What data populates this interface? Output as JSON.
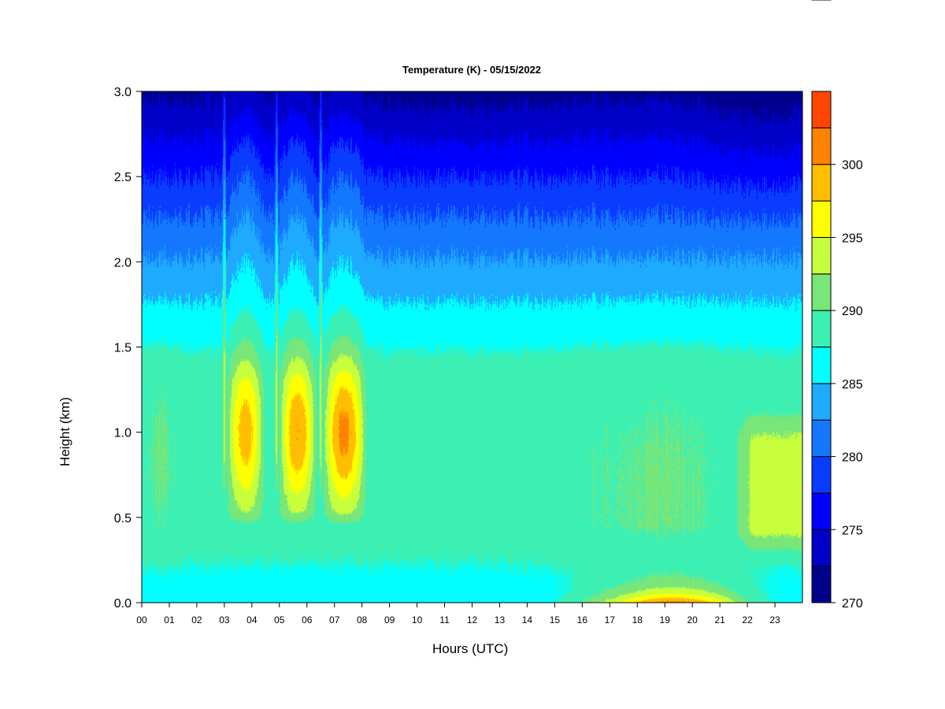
{
  "chart_data": {
    "type": "heatmap",
    "title": "Temperature (K) - 05/15/2022",
    "xlabel": "Hours (UTC)",
    "ylabel": "Height (km)",
    "x_tick_labels": [
      "00",
      "01",
      "02",
      "03",
      "04",
      "05",
      "06",
      "07",
      "08",
      "09",
      "10",
      "11",
      "12",
      "13",
      "14",
      "15",
      "16",
      "17",
      "18",
      "19",
      "20",
      "21",
      "22",
      "23"
    ],
    "y_tick_labels": [
      "0.0",
      "0.5",
      "1.0",
      "1.5",
      "2.0",
      "2.5",
      "3.0"
    ],
    "xlim": [
      0,
      24
    ],
    "ylim": [
      0,
      3.0
    ],
    "colorbar": {
      "levels": [
        270,
        302.5,
        305
      ],
      "step": 2.5,
      "tick_values": [
        270,
        275,
        280,
        285,
        290,
        295,
        300
      ],
      "tick_labels": [
        "270",
        "275",
        "280",
        "285",
        "290",
        "295",
        "300"
      ],
      "colors": [
        "#00008b",
        "#0000c8",
        "#0000ff",
        "#0a3cff",
        "#1478ff",
        "#1eaaff",
        "#00ffff",
        "#3cf0b4",
        "#78e678",
        "#c8ff3c",
        "#ffff00",
        "#ffbe00",
        "#ff8200",
        "#ff4600",
        "#ff0000",
        "#c80000",
        "#780000"
      ]
    },
    "grid": false,
    "legend": "colorbar-right",
    "features": {
      "surface_layer_k": 286,
      "mid_layer_k": 289,
      "upper_air_k_at_3km": 272,
      "warm_columns": [
        {
          "start_hour": 3.1,
          "end_hour": 4.5,
          "peak_height_km": 1.0,
          "peak_k": 299
        },
        {
          "start_hour": 5.0,
          "end_hour": 6.4,
          "peak_height_km": 1.0,
          "peak_k": 300
        },
        {
          "start_hour": 6.6,
          "end_hour": 8.2,
          "peak_height_km": 1.0,
          "peak_k": 301
        }
      ],
      "cold_gaps_hours": [
        3.0,
        4.9,
        6.5
      ],
      "afternoon_surface_heating": {
        "start_hour": 14,
        "end_hour": 22,
        "peak_hour": 19.3,
        "peak_k": 299
      },
      "evening_warm_patch": {
        "start_hour": 21.8,
        "end_hour": 24,
        "height_range_km": [
          0.3,
          1.1
        ],
        "k": 293
      }
    }
  }
}
